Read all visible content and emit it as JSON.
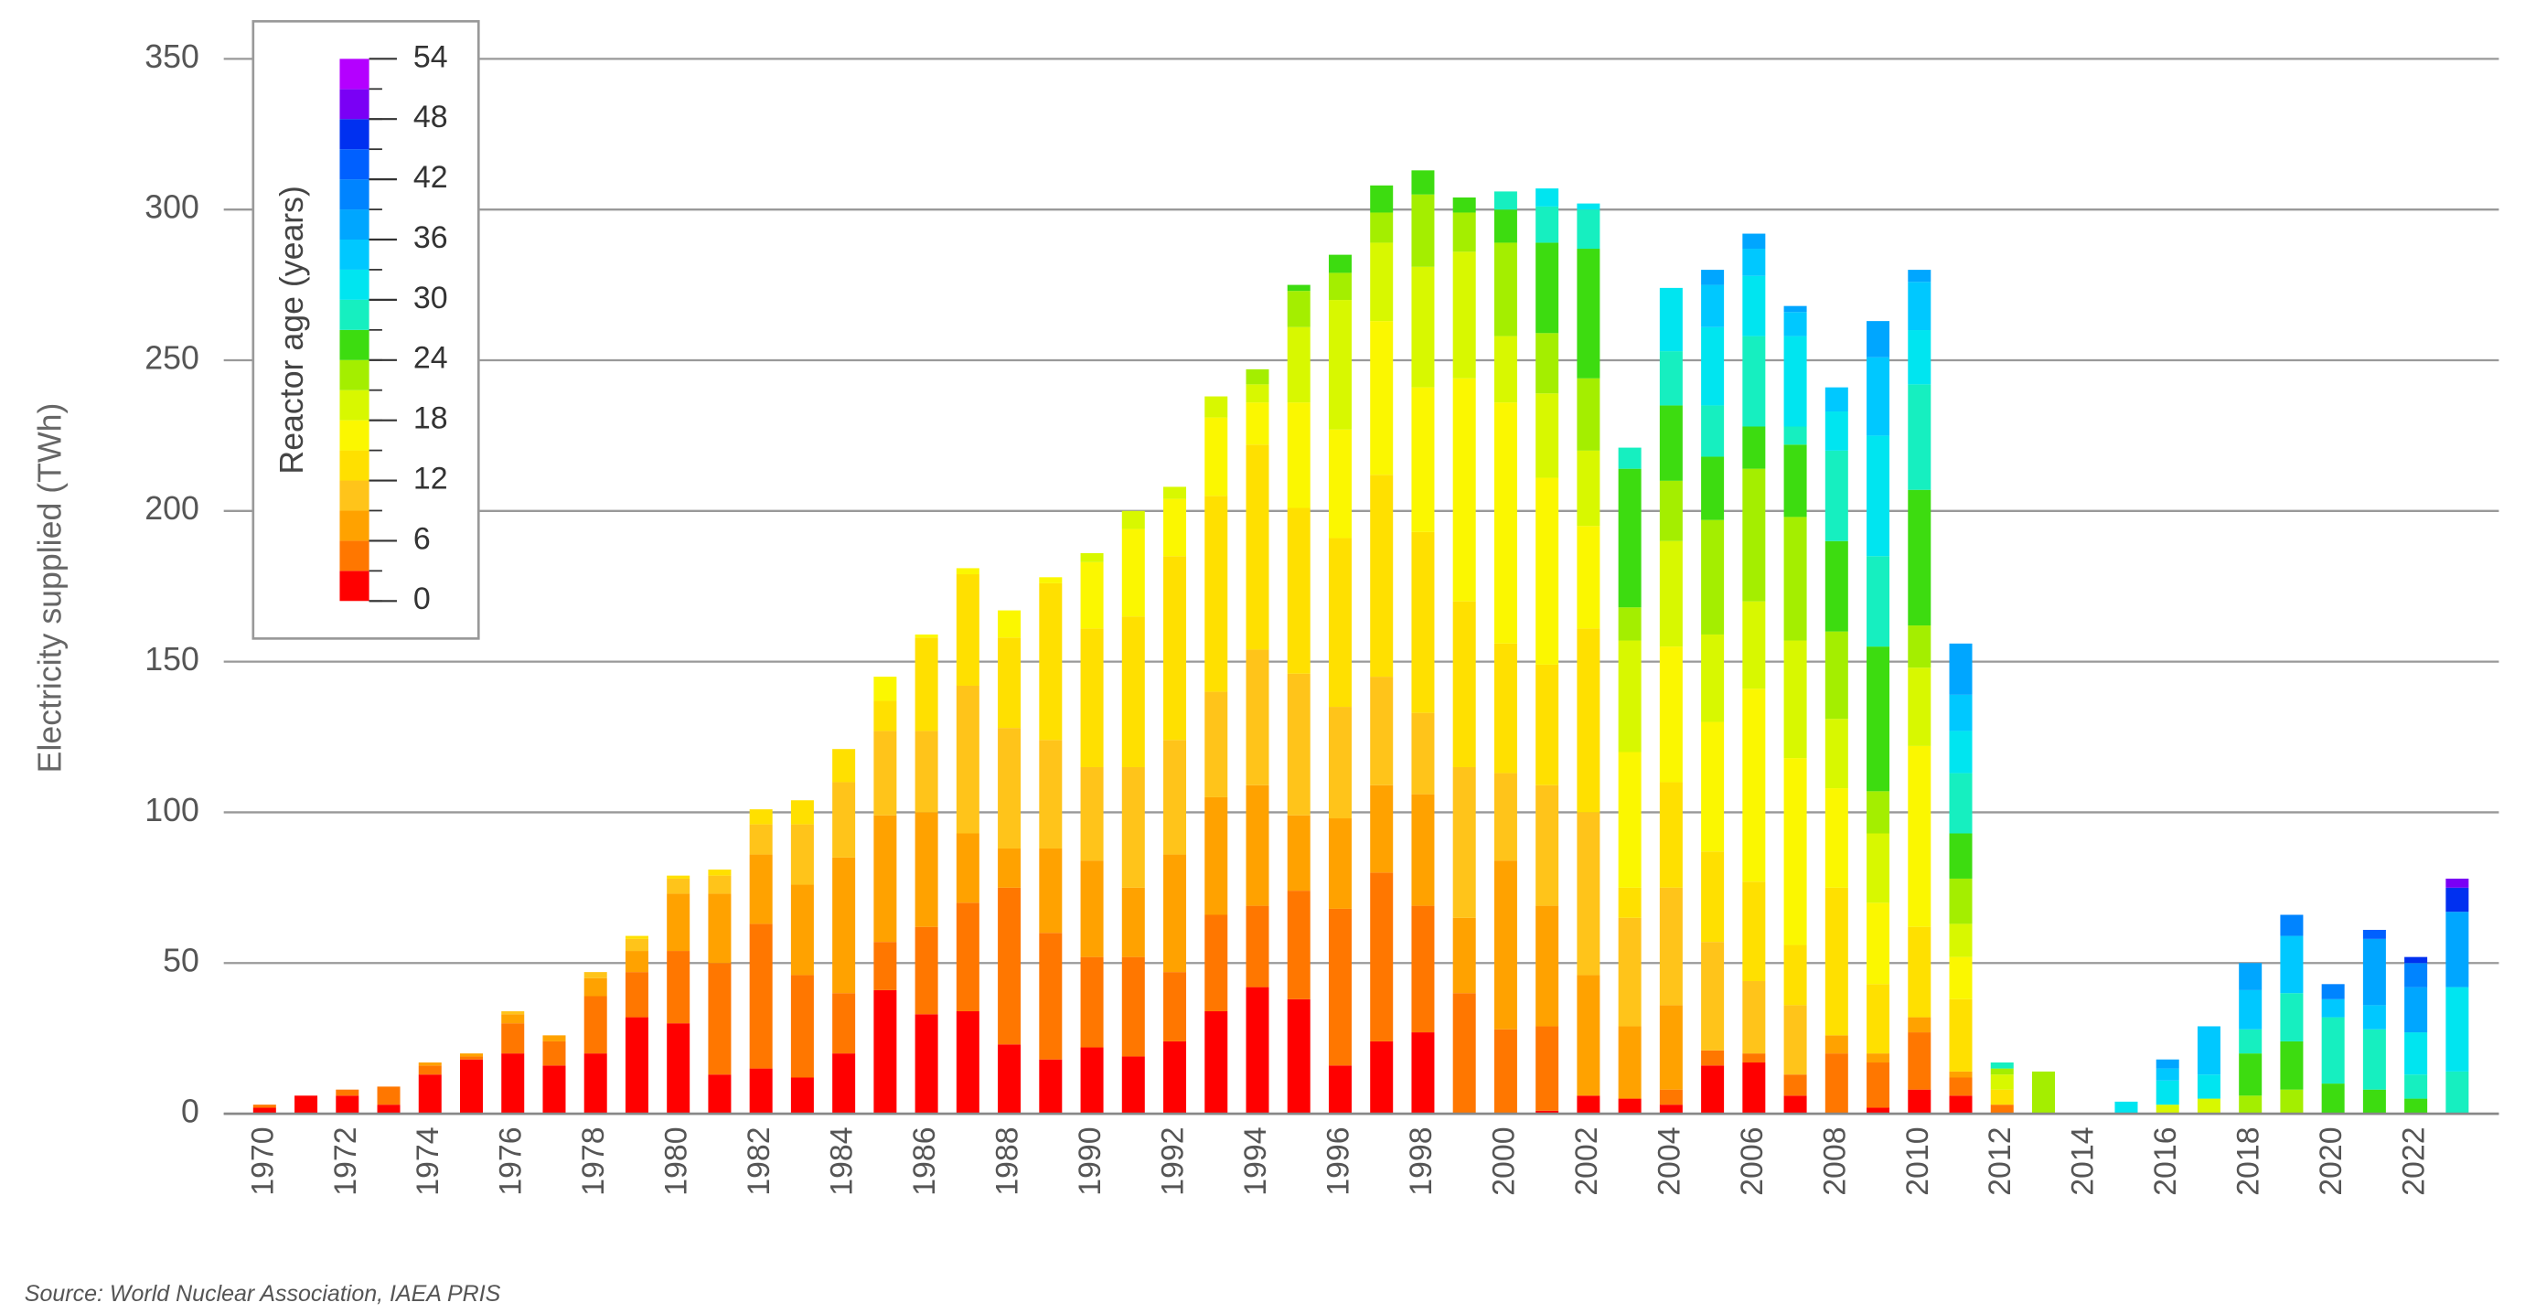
{
  "chart_data": {
    "type": "stacked-bar",
    "y_label": "Electricity supplied (TWh)",
    "source": "Source: World Nuclear Association, IAEA PRIS",
    "ylim": [
      0,
      350
    ],
    "yticks": [
      0,
      50,
      100,
      150,
      200,
      250,
      300,
      350
    ],
    "grid": true,
    "colorbar": {
      "label": "Reactor age (years)",
      "ticks": [
        0,
        6,
        12,
        18,
        24,
        30,
        36,
        42,
        48,
        54
      ],
      "step": 3
    },
    "colors": [
      "#ff0000",
      "#ff7700",
      "#ffa200",
      "#ffc41a",
      "#ffe000",
      "#fbf700",
      "#d8f800",
      "#a4ee00",
      "#3ddc10",
      "#16efc0",
      "#00e5f0",
      "#00c8ff",
      "#00a6ff",
      "#0084ff",
      "#0060ff",
      "#0030f0",
      "#7a00f5",
      "#b400ff"
    ],
    "categories": [
      "1970",
      null,
      "1972",
      null,
      "1974",
      null,
      "1976",
      null,
      "1978",
      null,
      "1980",
      null,
      "1982",
      null,
      "1984",
      null,
      "1986",
      null,
      "1988",
      null,
      "1990",
      null,
      "1992",
      null,
      "1994",
      null,
      "1996",
      null,
      "1998",
      null,
      "2000",
      null,
      "2002",
      null,
      "2004",
      null,
      "2006",
      null,
      "2008",
      null,
      "2010",
      null,
      "2012",
      null,
      "2014",
      null,
      "2016",
      null,
      "2018",
      null,
      "2020",
      null,
      "2022",
      null
    ],
    "values": [
      [
        2,
        1
      ],
      [
        6
      ],
      [
        6,
        2
      ],
      [
        3,
        6
      ],
      [
        13,
        3,
        1
      ],
      [
        18,
        1,
        1
      ],
      [
        20,
        10,
        3,
        1
      ],
      [
        16,
        8,
        2
      ],
      [
        20,
        19,
        6,
        2
      ],
      [
        32,
        15,
        7,
        4,
        1
      ],
      [
        30,
        24,
        19,
        5,
        1
      ],
      [
        13,
        37,
        23,
        6,
        2
      ],
      [
        15,
        48,
        23,
        10,
        5
      ],
      [
        12,
        34,
        30,
        20,
        8
      ],
      [
        20,
        20,
        45,
        25,
        11
      ],
      [
        41,
        16,
        42,
        28,
        10,
        8
      ],
      [
        33,
        29,
        38,
        27,
        31,
        1
      ],
      [
        34,
        36,
        23,
        49,
        37,
        2
      ],
      [
        23,
        52,
        13,
        40,
        30,
        9
      ],
      [
        18,
        42,
        28,
        36,
        52,
        2
      ],
      [
        22,
        30,
        32,
        31,
        46,
        22,
        3
      ],
      [
        19,
        33,
        23,
        40,
        50,
        29,
        6
      ],
      [
        24,
        23,
        39,
        38,
        61,
        19,
        4
      ],
      [
        34,
        32,
        39,
        35,
        65,
        26,
        7
      ],
      [
        42,
        27,
        40,
        45,
        68,
        14,
        6,
        5
      ],
      [
        38,
        36,
        25,
        47,
        55,
        35,
        25,
        12,
        2
      ],
      [
        16,
        52,
        30,
        37,
        56,
        36,
        43,
        9,
        6
      ],
      [
        24,
        56,
        29,
        36,
        67,
        51,
        26,
        10,
        9
      ],
      [
        27,
        42,
        37,
        27,
        60,
        48,
        40,
        24,
        8
      ],
      [
        0,
        40,
        25,
        50,
        55,
        74,
        42,
        13,
        5
      ],
      [
        0,
        28,
        56,
        29,
        43,
        80,
        22,
        31,
        11,
        6
      ],
      [
        1,
        28,
        40,
        40,
        40,
        62,
        28,
        20,
        30,
        12,
        6
      ],
      [
        6,
        0,
        40,
        54,
        61,
        34,
        25,
        24,
        43,
        13,
        2
      ],
      [
        5,
        0,
        24,
        36,
        10,
        45,
        37,
        11,
        46,
        7
      ],
      [
        3,
        5,
        28,
        39,
        35,
        45,
        35,
        20,
        25,
        18,
        21
      ],
      [
        16,
        5,
        0,
        36,
        30,
        43,
        29,
        38,
        21,
        17,
        26,
        14,
        5
      ],
      [
        17,
        3,
        0,
        24,
        33,
        64,
        29,
        44,
        14,
        30,
        20,
        9,
        5
      ],
      [
        6,
        7,
        0,
        23,
        20,
        62,
        39,
        41,
        24,
        6,
        30,
        8,
        2
      ],
      [
        0,
        20,
        6,
        0,
        49,
        33,
        23,
        29,
        30,
        30,
        13,
        8
      ],
      [
        2,
        15,
        3,
        0,
        23,
        27,
        23,
        14,
        48,
        30,
        40,
        26,
        12
      ],
      [
        8,
        19,
        5,
        0,
        30,
        60,
        26,
        14,
        45,
        35,
        18,
        16,
        4
      ],
      [
        6,
        6,
        2,
        0,
        24,
        14,
        11,
        15,
        15,
        20,
        14,
        12,
        17
      ],
      [
        0,
        3,
        0,
        0,
        5,
        0,
        5,
        2,
        0,
        2
      ],
      [
        0,
        0,
        0,
        0,
        0,
        0,
        0,
        14
      ],
      [],
      [
        0,
        0,
        0,
        0,
        0,
        0,
        0,
        0,
        0,
        0,
        4
      ],
      [
        0,
        0,
        0,
        0,
        0,
        0,
        3,
        0,
        0,
        0,
        8,
        4,
        3
      ],
      [
        0,
        0,
        0,
        0,
        0,
        0,
        5,
        0,
        0,
        0,
        8,
        16
      ],
      [
        0,
        0,
        0,
        0,
        0,
        0,
        0,
        6,
        14,
        8,
        0,
        13,
        9
      ],
      [
        0,
        0,
        0,
        0,
        0,
        0,
        0,
        8,
        16,
        16,
        0,
        19,
        0,
        7
      ],
      [
        0,
        0,
        0,
        0,
        0,
        0,
        0,
        0,
        10,
        22,
        0,
        6,
        0,
        5
      ],
      [
        0,
        0,
        0,
        0,
        0,
        0,
        0,
        0,
        8,
        20,
        0,
        8,
        22,
        0,
        3
      ],
      [
        0,
        0,
        0,
        0,
        0,
        0,
        0,
        0,
        5,
        8,
        14,
        0,
        15,
        8,
        0,
        2
      ],
      [
        0,
        0,
        0,
        0,
        0,
        0,
        0,
        0,
        0,
        14,
        28,
        0,
        25,
        0,
        0,
        8,
        3
      ]
    ]
  }
}
